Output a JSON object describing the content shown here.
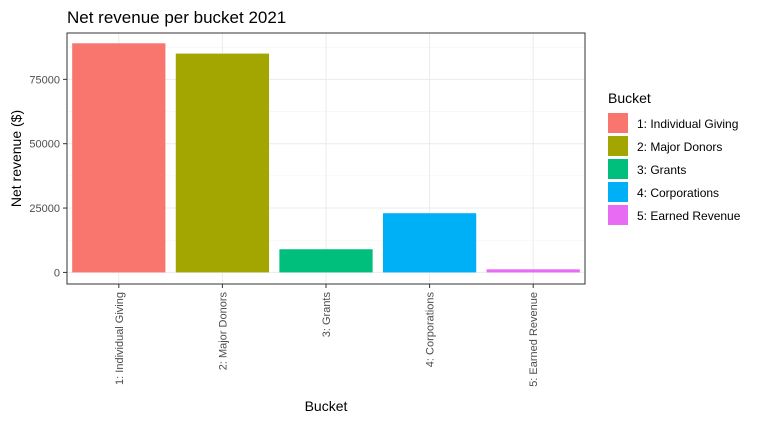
{
  "chart_data": {
    "type": "bar",
    "title": "Net revenue per bucket 2021",
    "xlabel": "Bucket",
    "ylabel": "Net revenue ($)",
    "categories": [
      "1: Individual Giving",
      "2: Major Donors",
      "3: Grants",
      "4: Corporations",
      "5: Earned Revenue"
    ],
    "values": [
      89000,
      85000,
      9000,
      23000,
      1200
    ],
    "colors": [
      "#F8766D",
      "#A3A500",
      "#00BF7D",
      "#00B0F6",
      "#E76BF3"
    ],
    "ylim": [
      -4500,
      93000
    ],
    "yticks": [
      0,
      25000,
      50000,
      75000
    ],
    "ytick_labels": [
      "0",
      "25000",
      "50000",
      "75000"
    ],
    "grid": true,
    "legend": {
      "title": "Bucket",
      "position": "right",
      "entries": [
        "1: Individual Giving",
        "2: Major Donors",
        "3: Grants",
        "4: Corporations",
        "5: Earned Revenue"
      ]
    }
  }
}
